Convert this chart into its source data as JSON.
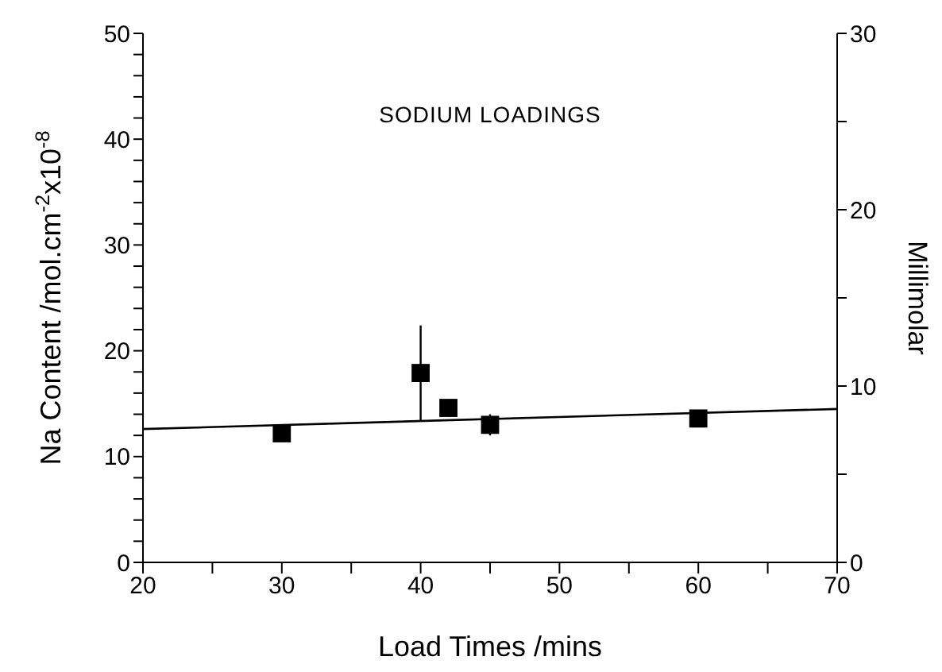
{
  "chart_data": {
    "type": "scatter",
    "title": "SODIUM LOADINGS",
    "xlabel": "Load Times /mins",
    "ylabel": "Na Content  /mol.cm$^{-2}$x10$^{-8}$",
    "y2label": "Millimolar",
    "series": [
      {
        "color": "#000000",
        "marker": "square",
        "x": [
          30,
          40,
          42,
          45,
          60
        ],
        "values": [
          12.2,
          17.9,
          14.6,
          13.0,
          13.6
        ],
        "errors": [
          null,
          4.5,
          null,
          1,
          null
        ]
      },
      {
        "type": "line",
        "color": "#000000",
        "marker": "none",
        "x": [
          20,
          70
        ],
        "values": [
          12.6,
          14.5
        ]
      }
    ],
    "xlim": [
      20,
      70
    ],
    "xticks": [
      20,
      {
        "value": 25,
        "label": null
      },
      30,
      {
        "value": 35,
        "label": null
      },
      40,
      {
        "value": 45,
        "label": null
      },
      50,
      {
        "value": 55,
        "label": null
      },
      60,
      {
        "value": 65,
        "label": null
      },
      70
    ],
    "ylim": [
      0,
      50
    ],
    "yticks": [
      0,
      {
        "value": 2,
        "label": null
      },
      {
        "value": 4,
        "label": null
      },
      {
        "value": 6,
        "label": null
      },
      {
        "value": 8,
        "label": null
      },
      10,
      {
        "value": 12,
        "label": null
      },
      {
        "value": 14,
        "label": null
      },
      {
        "value": 16,
        "label": null
      },
      {
        "value": 18,
        "label": null
      },
      20,
      {
        "value": 22,
        "label": null
      },
      {
        "value": 24,
        "label": null
      },
      {
        "value": 26,
        "label": null
      },
      {
        "value": 28,
        "label": null
      },
      30,
      {
        "value": 32,
        "label": null
      },
      {
        "value": 34,
        "label": null
      },
      {
        "value": 36,
        "label": null
      },
      {
        "value": 38,
        "label": null
      },
      40,
      {
        "value": 42,
        "label": null
      },
      {
        "value": 44,
        "label": null
      },
      {
        "value": 46,
        "label": null
      },
      {
        "value": 48,
        "label": null
      },
      50
    ],
    "y2lim": [
      0,
      30
    ],
    "y2ticks": [
      0,
      {
        "value": 5,
        "label": null
      },
      10,
      {
        "value": 15,
        "label": null
      },
      20,
      {
        "value": 25,
        "label": null
      },
      30
    ],
    "line_style": "solid"
  }
}
